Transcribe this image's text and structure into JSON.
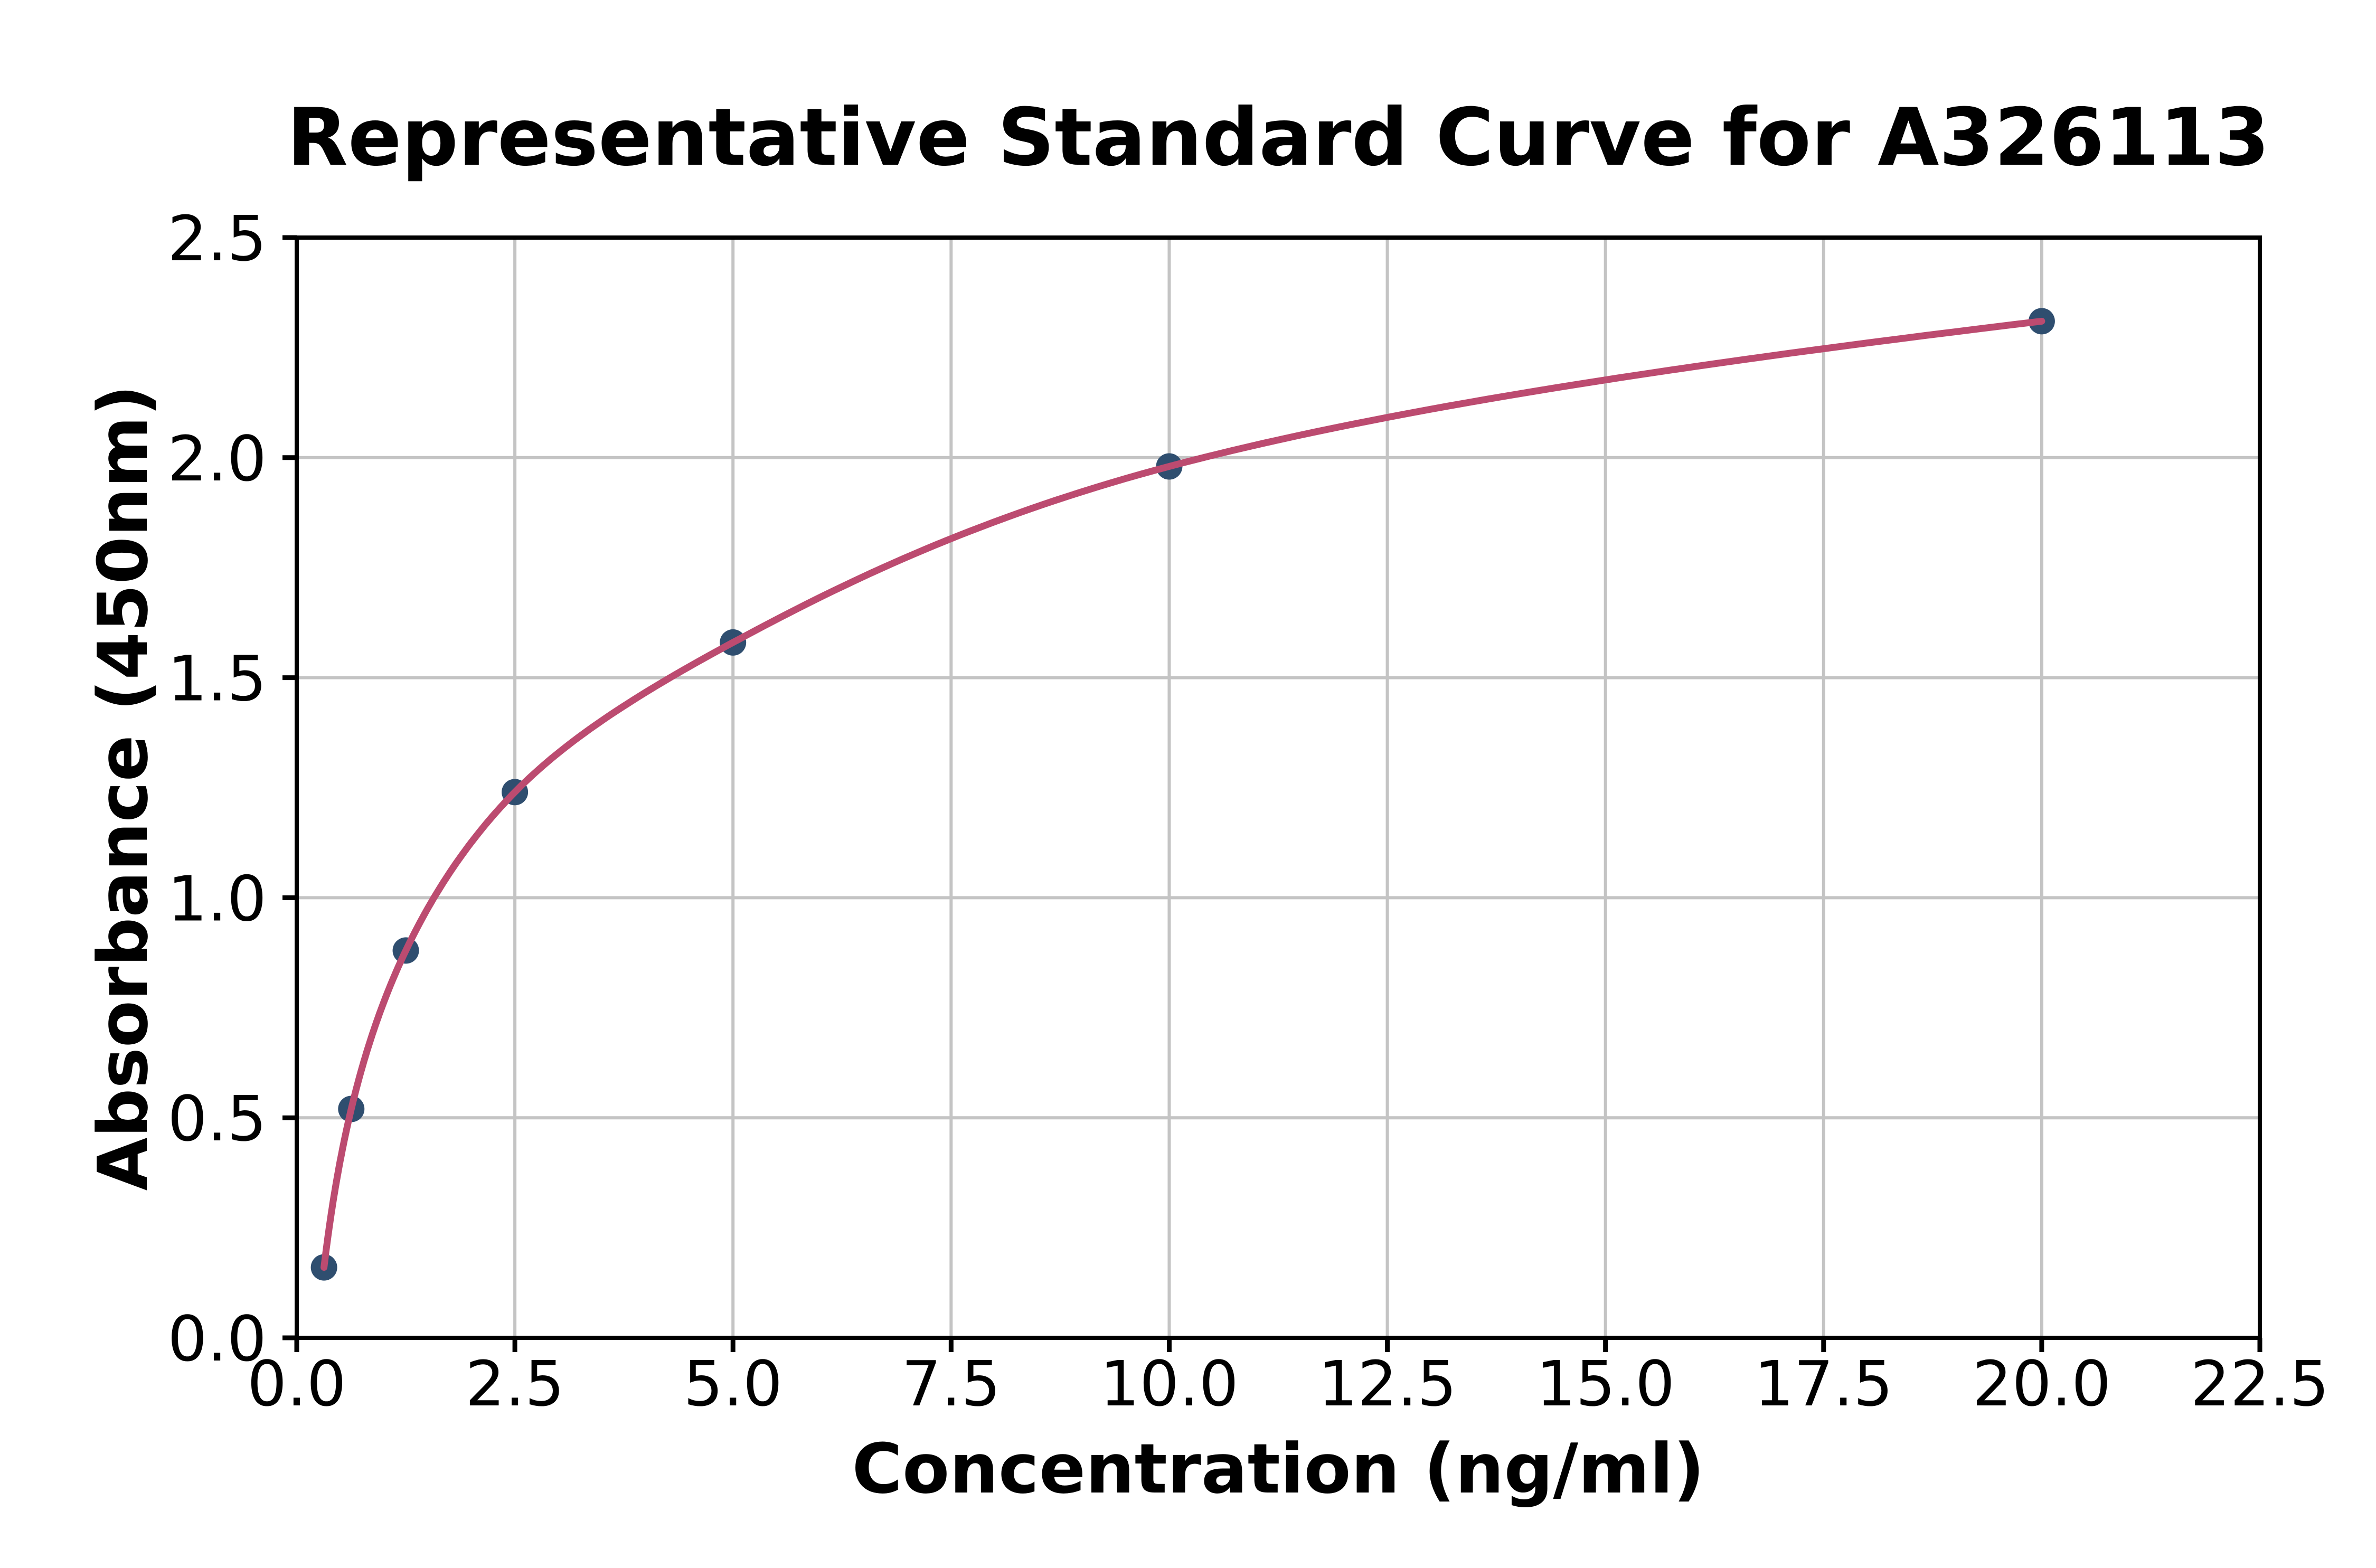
{
  "chart_data": {
    "type": "scatter",
    "title": "Representative Standard Curve for A326113",
    "xlabel": "Concentration (ng/ml)",
    "ylabel": "Absorbance (450nm)",
    "xlim": [
      0,
      22.5
    ],
    "ylim": [
      0,
      2.5
    ],
    "grid": true,
    "legend": "none",
    "x_ticks": {
      "values": [
        0,
        2.5,
        5,
        7.5,
        10,
        12.5,
        15,
        17.5,
        20,
        22.5
      ],
      "labels": [
        "0.0",
        "2.5",
        "5.0",
        "7.5",
        "10.0",
        "12.5",
        "15.0",
        "17.5",
        "20.0",
        "22.5"
      ]
    },
    "y_ticks": {
      "values": [
        0,
        0.5,
        1,
        1.5,
        2,
        2.5
      ],
      "labels": [
        "0.0",
        "0.5",
        "1.0",
        "1.5",
        "2.0",
        "2.5"
      ]
    },
    "series": [
      {
        "name": "standard-points",
        "marker": "circle",
        "x": [
          0.3125,
          0.625,
          1.25,
          2.5,
          5,
          10,
          20
        ],
        "y": [
          0.16,
          0.52,
          0.88,
          1.24,
          1.58,
          1.98,
          2.31
        ]
      }
    ],
    "fit_curve": {
      "name": "standard-curve-fit",
      "passes_through_series": 0,
      "x_interpolation": "log2",
      "x_range": [
        0.3125,
        20
      ]
    },
    "colors": {
      "curve": "#bc4b70",
      "marker": "#2f4e6f",
      "grid": "#c4c4c4",
      "axis": "#000000",
      "text": "#000000",
      "background": "#ffffff"
    }
  }
}
